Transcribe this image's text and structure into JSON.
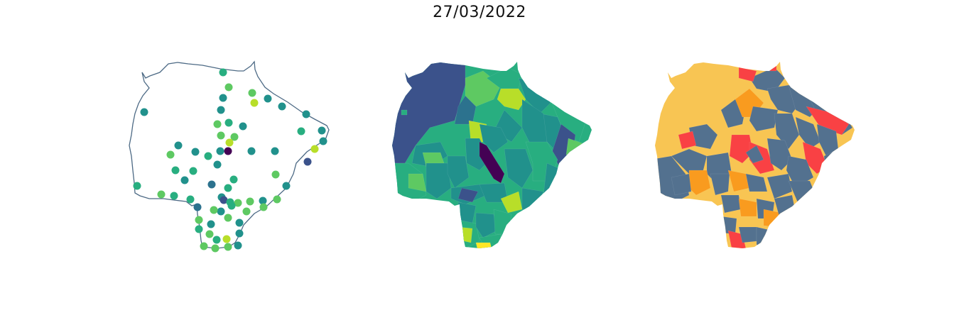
{
  "figure": {
    "title": "27/03/2022"
  },
  "colors": {
    "outline": "#4d6a85",
    "viridis": [
      "#440154",
      "#3b528b",
      "#2c728e",
      "#21918c",
      "#28ae80",
      "#5ec962",
      "#b8de29",
      "#fde725"
    ],
    "risk": {
      "low": "#53718f",
      "moderate": "#f8c553",
      "high": "#f99b1f",
      "very_high": "#f94144"
    }
  },
  "panels": [
    {
      "id": "stations",
      "kind": "point-map",
      "outline": "state-border"
    },
    {
      "id": "municipal-choropleth-viridis",
      "kind": "choropleth"
    },
    {
      "id": "municipal-risk-classes",
      "kind": "categorical-choropleth"
    }
  ]
}
